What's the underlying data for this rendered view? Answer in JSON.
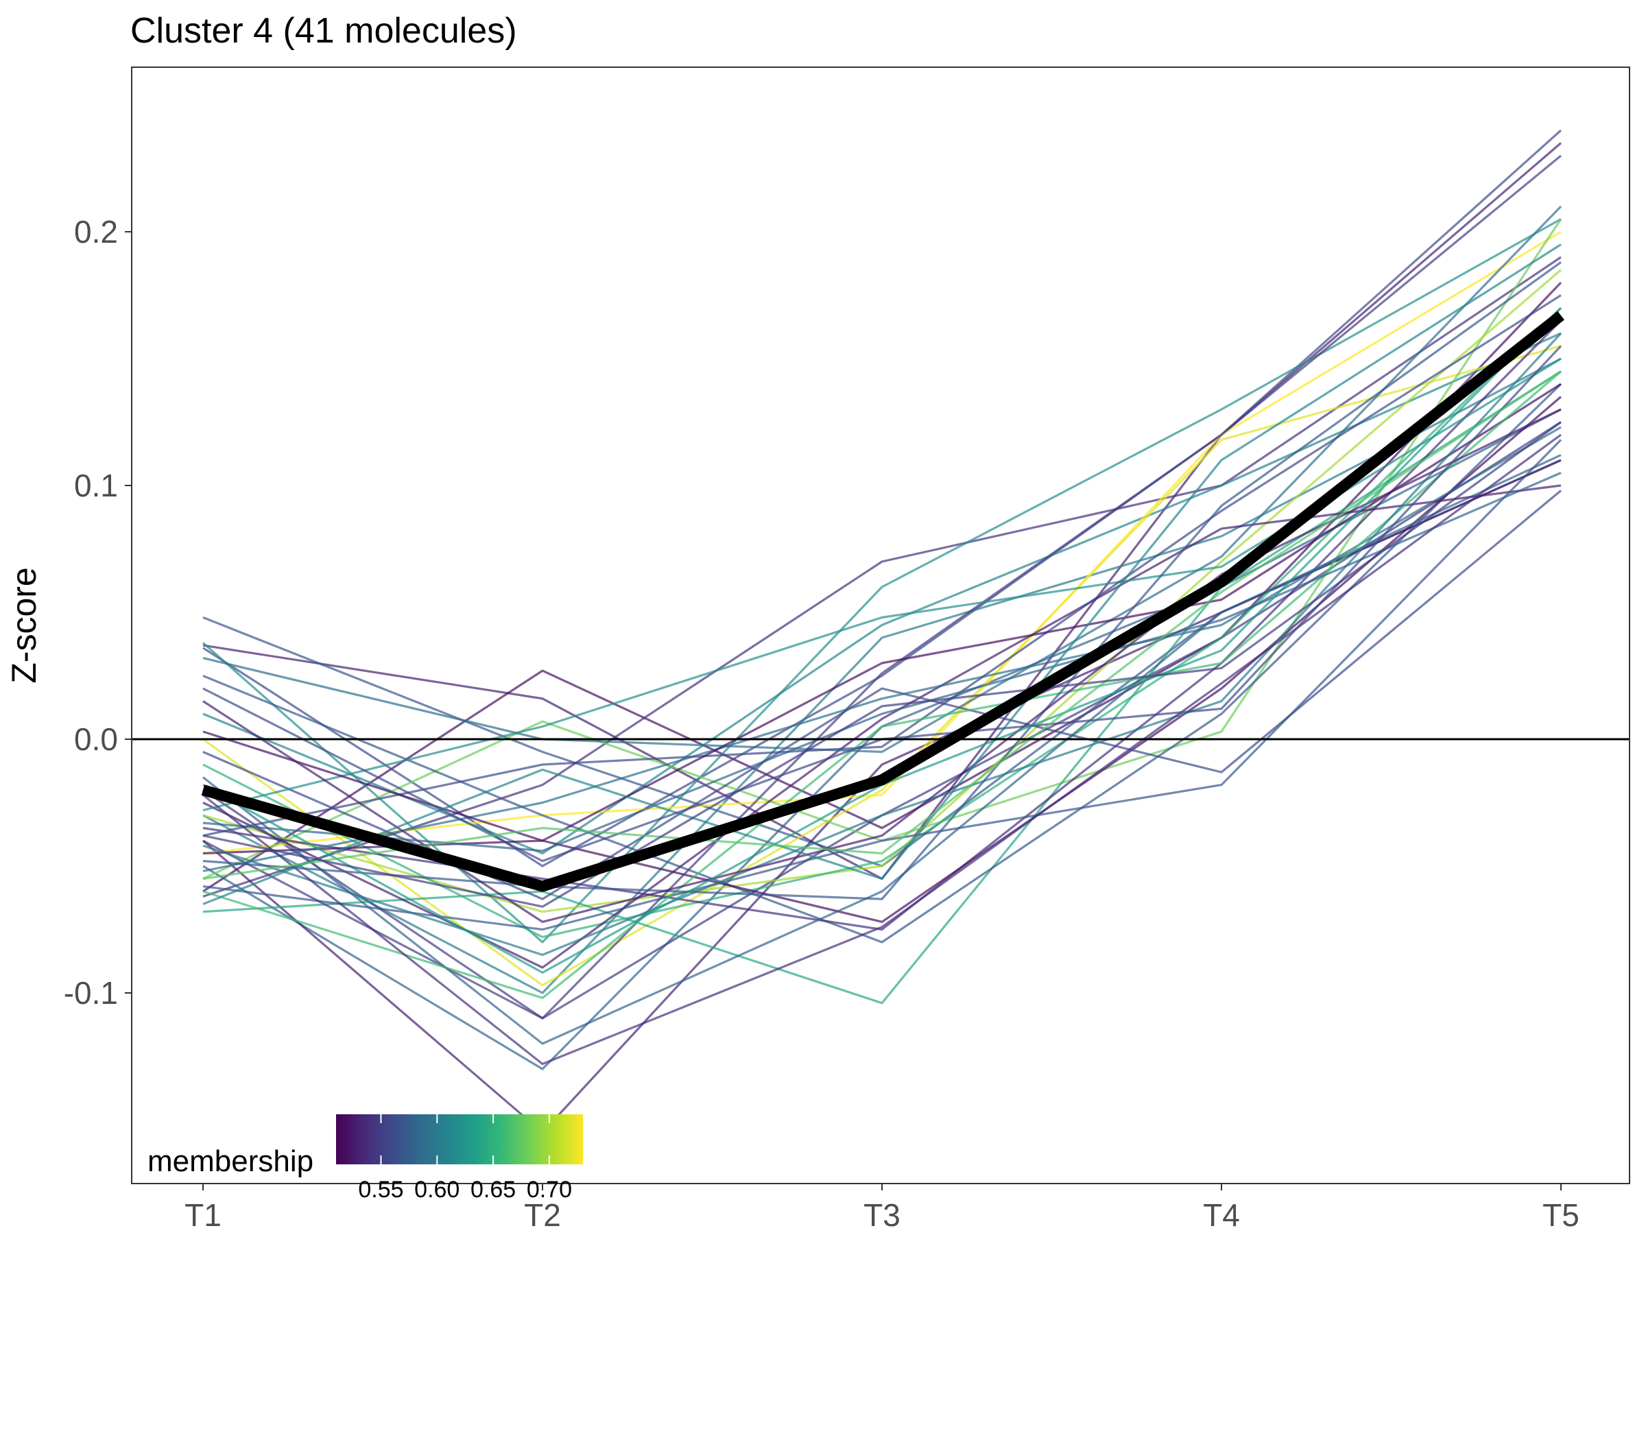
{
  "chart_data": {
    "type": "line",
    "title": "Cluster 4 (41 molecules)",
    "xlabel": "",
    "ylabel": "Z-score",
    "categories": [
      "T1",
      "T2",
      "T3",
      "T4",
      "T5"
    ],
    "y_ticks": [
      "0.2",
      "0.1",
      "0.0",
      "-0.1"
    ],
    "ylim": [
      -0.175,
      0.265
    ],
    "reference_line_y": 0.0,
    "grid": false,
    "legend": {
      "title": "membership",
      "position": "bottom-left",
      "type": "colorbar",
      "palette": "viridis",
      "range": [
        0.51,
        0.73
      ],
      "tick_values": [
        0.55,
        0.6,
        0.65,
        0.7
      ],
      "tick_labels": [
        "0.55",
        "0.60",
        "0.65",
        "0.70"
      ]
    },
    "centroid": {
      "values": [
        -0.02,
        -0.058,
        -0.016,
        0.062,
        0.167
      ],
      "color": "#000000"
    },
    "series": [
      {
        "values": [
          0.037,
          0.016,
          -0.055,
          0.12,
          0.235
        ],
        "membership": 0.53
      },
      {
        "values": [
          -0.06,
          0.027,
          -0.035,
          0.04,
          0.18
        ],
        "membership": 0.52
      },
      {
        "values": [
          0.048,
          -0.005,
          -0.05,
          0.05,
          0.11
        ],
        "membership": 0.57
      },
      {
        "values": [
          -0.062,
          -0.018,
          0.07,
          0.1,
          0.19
        ],
        "membership": 0.54
      },
      {
        "values": [
          0.036,
          -0.05,
          0.025,
          0.12,
          0.24
        ],
        "membership": 0.56
      },
      {
        "values": [
          0.038,
          -0.08,
          0.06,
          0.13,
          0.205
        ],
        "membership": 0.62
      },
      {
        "values": [
          0.01,
          -0.045,
          0.045,
          0.1,
          0.16
        ],
        "membership": 0.61
      },
      {
        "values": [
          -0.03,
          -0.1,
          0.04,
          0.08,
          0.15
        ],
        "membership": 0.6
      },
      {
        "values": [
          -0.05,
          -0.13,
          0.005,
          0.06,
          0.13
        ],
        "membership": 0.58
      },
      {
        "values": [
          -0.04,
          -0.155,
          -0.01,
          0.05,
          0.11
        ],
        "membership": 0.53
      },
      {
        "values": [
          -0.02,
          -0.11,
          -0.03,
          0.04,
          0.125
        ],
        "membership": 0.55
      },
      {
        "values": [
          0.0,
          -0.097,
          -0.02,
          0.118,
          0.155
        ],
        "membership": 0.72
      },
      {
        "values": [
          -0.045,
          -0.03,
          -0.022,
          0.12,
          0.2
        ],
        "membership": 0.73
      },
      {
        "values": [
          -0.055,
          0.007,
          -0.04,
          0.003,
          0.205
        ],
        "membership": 0.68
      },
      {
        "values": [
          -0.03,
          -0.068,
          -0.05,
          0.07,
          0.185
        ],
        "membership": 0.7
      },
      {
        "values": [
          -0.068,
          -0.06,
          -0.104,
          0.06,
          0.145
        ],
        "membership": 0.64
      },
      {
        "values": [
          -0.01,
          -0.078,
          -0.048,
          0.04,
          0.17
        ],
        "membership": 0.65
      },
      {
        "values": [
          0.025,
          -0.03,
          -0.08,
          0.01,
          0.14
        ],
        "membership": 0.57
      },
      {
        "values": [
          -0.035,
          -0.055,
          -0.075,
          0.03,
          0.165
        ],
        "membership": 0.54
      },
      {
        "values": [
          -0.045,
          -0.04,
          -0.072,
          0.02,
          0.135
        ],
        "membership": 0.52
      },
      {
        "values": [
          -0.015,
          -0.12,
          -0.06,
          0.05,
          0.112
        ],
        "membership": 0.58
      },
      {
        "values": [
          -0.025,
          -0.09,
          0.008,
          0.083,
          0.1
        ],
        "membership": 0.53
      },
      {
        "values": [
          -0.058,
          -0.075,
          -0.04,
          -0.018,
          0.118
        ],
        "membership": 0.57
      },
      {
        "values": [
          -0.005,
          -0.063,
          0.02,
          -0.013,
          0.098
        ],
        "membership": 0.56
      },
      {
        "values": [
          0.032,
          0.0,
          -0.005,
          0.072,
          0.21
        ],
        "membership": 0.59
      },
      {
        "values": [
          -0.04,
          -0.11,
          0.026,
          0.12,
          0.23
        ],
        "membership": 0.55
      },
      {
        "values": [
          -0.028,
          0.005,
          0.048,
          0.068,
          0.15
        ],
        "membership": 0.62
      },
      {
        "values": [
          -0.052,
          -0.025,
          0.016,
          0.045,
          0.123
        ],
        "membership": 0.59
      },
      {
        "values": [
          -0.038,
          -0.01,
          -0.003,
          0.09,
          0.175
        ],
        "membership": 0.56
      },
      {
        "values": [
          0.003,
          -0.04,
          0.03,
          0.055,
          0.14
        ],
        "membership": 0.52
      },
      {
        "values": [
          -0.06,
          -0.102,
          0.005,
          0.03,
          0.145
        ],
        "membership": 0.66
      },
      {
        "values": [
          -0.042,
          -0.085,
          -0.03,
          0.015,
          0.16
        ],
        "membership": 0.6
      },
      {
        "values": [
          -0.048,
          -0.058,
          -0.063,
          0.092,
          0.188
        ],
        "membership": 0.57
      },
      {
        "values": [
          0.015,
          -0.072,
          -0.038,
          0.065,
          0.13
        ],
        "membership": 0.53
      },
      {
        "values": [
          -0.033,
          -0.044,
          0.01,
          0.047,
          0.105
        ],
        "membership": 0.58
      },
      {
        "values": [
          -0.022,
          -0.128,
          -0.074,
          0.022,
          0.12
        ],
        "membership": 0.54
      },
      {
        "values": [
          -0.065,
          -0.012,
          -0.055,
          0.11,
          0.195
        ],
        "membership": 0.61
      },
      {
        "values": [
          0.02,
          -0.048,
          0.0,
          0.012,
          0.155
        ],
        "membership": 0.56
      },
      {
        "values": [
          -0.018,
          -0.092,
          -0.018,
          0.035,
          0.17
        ],
        "membership": 0.63
      },
      {
        "values": [
          -0.055,
          -0.035,
          -0.045,
          0.058,
          0.145
        ],
        "membership": 0.67
      },
      {
        "values": [
          -0.038,
          -0.066,
          0.013,
          0.028,
          0.125
        ],
        "membership": 0.55
      }
    ]
  }
}
